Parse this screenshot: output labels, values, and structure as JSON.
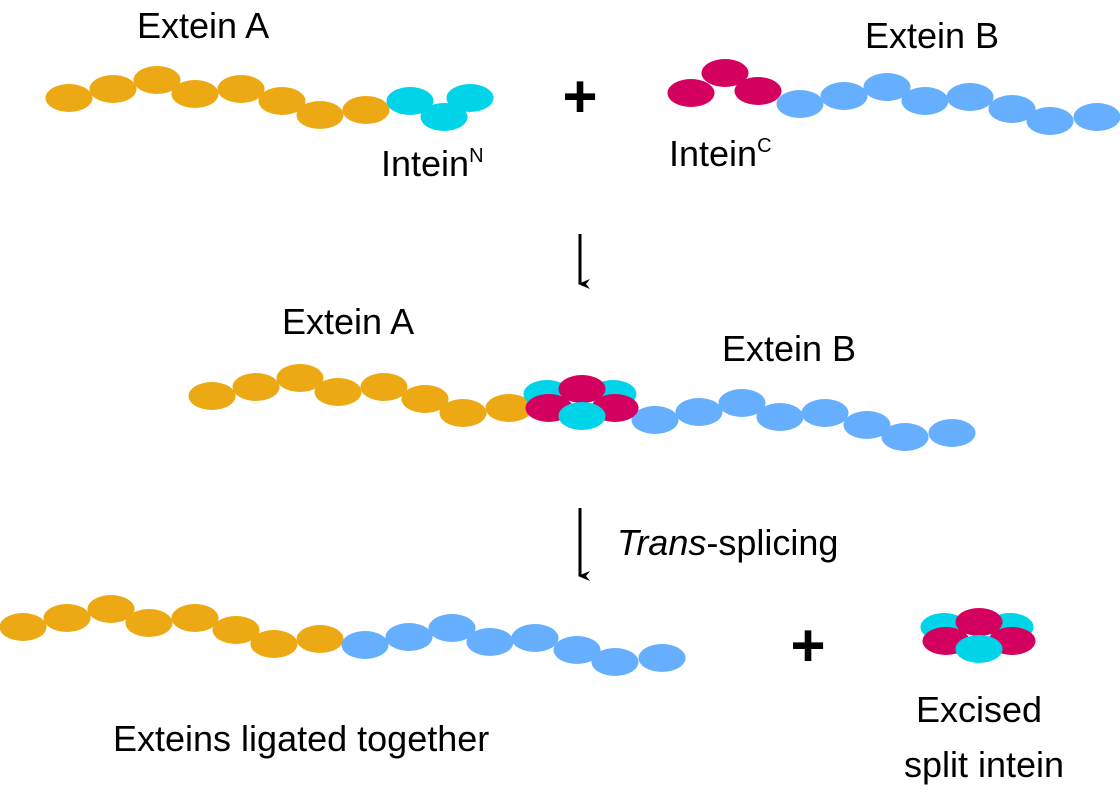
{
  "colors": {
    "extein_a": "#EDA913",
    "extein_b": "#66AFFF",
    "intein_n": "#00D4E8",
    "intein_c": "#D3005F"
  },
  "step1": {
    "extein_a_label": "Extein A",
    "extein_b_label": "Extein B",
    "intein_n_label": "Intein",
    "intein_n_sup": "N",
    "intein_c_label": "Intein",
    "intein_c_sup": "C",
    "plus": "+"
  },
  "step2": {
    "extein_a_label": "Extein A",
    "extein_b_label": "Extein B"
  },
  "step3": {
    "arrow_label_italic": "Trans",
    "arrow_label_rest": "-splicing",
    "ligated_label": "Exteins ligated together",
    "plus": "+",
    "excised_line1": "Excised",
    "excised_line2": "split intein"
  }
}
